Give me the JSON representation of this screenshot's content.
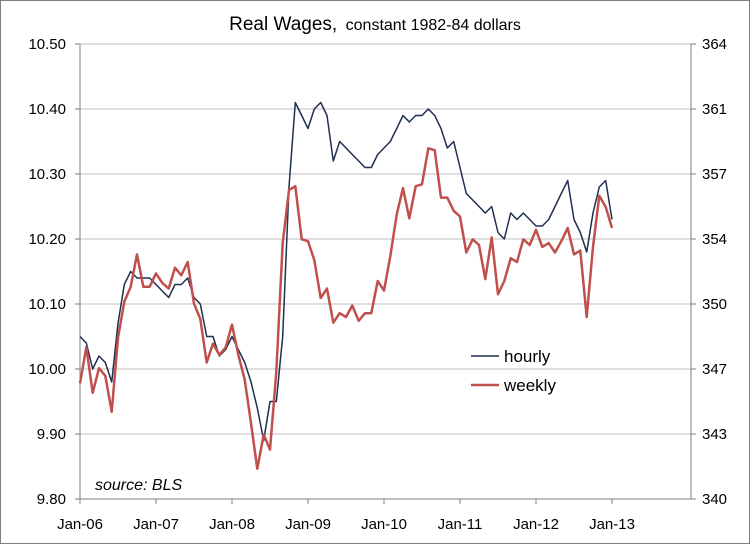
{
  "chart_data": {
    "type": "line",
    "title": "Real Wages,",
    "subtitle": "constant 1982-84 dollars",
    "annotation": "source: BLS",
    "x_tick_labels": [
      "Jan-06",
      "Jan-07",
      "Jan-08",
      "Jan-09",
      "Jan-10",
      "Jan-11",
      "Jan-12",
      "Jan-13"
    ],
    "y_left_ticks": [
      "9.80",
      "9.90",
      "10.00",
      "10.10",
      "10.20",
      "10.30",
      "10.40",
      "10.50"
    ],
    "y_right_ticks": [
      "340",
      "343",
      "347",
      "350",
      "354",
      "357",
      "361",
      "364"
    ],
    "ylim_left": [
      9.8,
      10.5
    ],
    "ylim_right": [
      340,
      364
    ],
    "x_start": "2006-01",
    "grid": "horizontal",
    "legend_position": "center-right",
    "series": [
      {
        "name": "hourly",
        "axis": "left",
        "color": "#1f2f4f",
        "values": [
          10.05,
          10.04,
          10.0,
          10.02,
          10.01,
          9.98,
          10.07,
          10.13,
          10.15,
          10.14,
          10.14,
          10.14,
          10.13,
          10.12,
          10.11,
          10.13,
          10.13,
          10.14,
          10.11,
          10.1,
          10.05,
          10.05,
          10.02,
          10.03,
          10.05,
          10.03,
          10.01,
          9.98,
          9.94,
          9.89,
          9.95,
          9.95,
          10.05,
          10.28,
          10.41,
          10.39,
          10.37,
          10.4,
          10.41,
          10.39,
          10.32,
          10.35,
          10.34,
          10.33,
          10.32,
          10.31,
          10.31,
          10.33,
          10.34,
          10.35,
          10.37,
          10.39,
          10.38,
          10.39,
          10.39,
          10.4,
          10.39,
          10.37,
          10.34,
          10.35,
          10.31,
          10.27,
          10.26,
          10.25,
          10.24,
          10.25,
          10.21,
          10.2,
          10.24,
          10.23,
          10.24,
          10.23,
          10.22,
          10.22,
          10.23,
          10.25,
          10.27,
          10.29,
          10.23,
          10.21,
          10.18,
          10.24,
          10.28,
          10.29,
          10.23
        ]
      },
      {
        "name": "weekly",
        "axis": "right",
        "color": "#c0504d",
        "values": [
          346.1,
          348.0,
          345.6,
          346.9,
          346.5,
          344.6,
          348.5,
          350.4,
          351.2,
          352.9,
          351.2,
          351.2,
          351.9,
          351.4,
          351.1,
          352.2,
          351.8,
          352.5,
          350.3,
          349.5,
          347.2,
          348.2,
          347.6,
          348.0,
          349.2,
          347.6,
          346.3,
          344.0,
          341.6,
          343.4,
          342.6,
          346.7,
          353.5,
          356.3,
          356.5,
          353.7,
          353.6,
          352.6,
          350.6,
          351.1,
          349.3,
          349.8,
          349.6,
          350.2,
          349.4,
          349.8,
          349.8,
          351.5,
          351.0,
          352.8,
          355.0,
          356.4,
          354.8,
          356.5,
          356.6,
          358.5,
          358.4,
          355.9,
          355.9,
          355.2,
          354.9,
          353.0,
          353.7,
          353.4,
          351.6,
          353.8,
          350.8,
          351.5,
          352.7,
          352.5,
          353.7,
          353.4,
          354.2,
          353.3,
          353.5,
          353.0,
          353.6,
          354.3,
          352.9,
          353.1,
          349.6,
          353.3,
          356.0,
          355.4,
          354.3
        ]
      }
    ]
  }
}
